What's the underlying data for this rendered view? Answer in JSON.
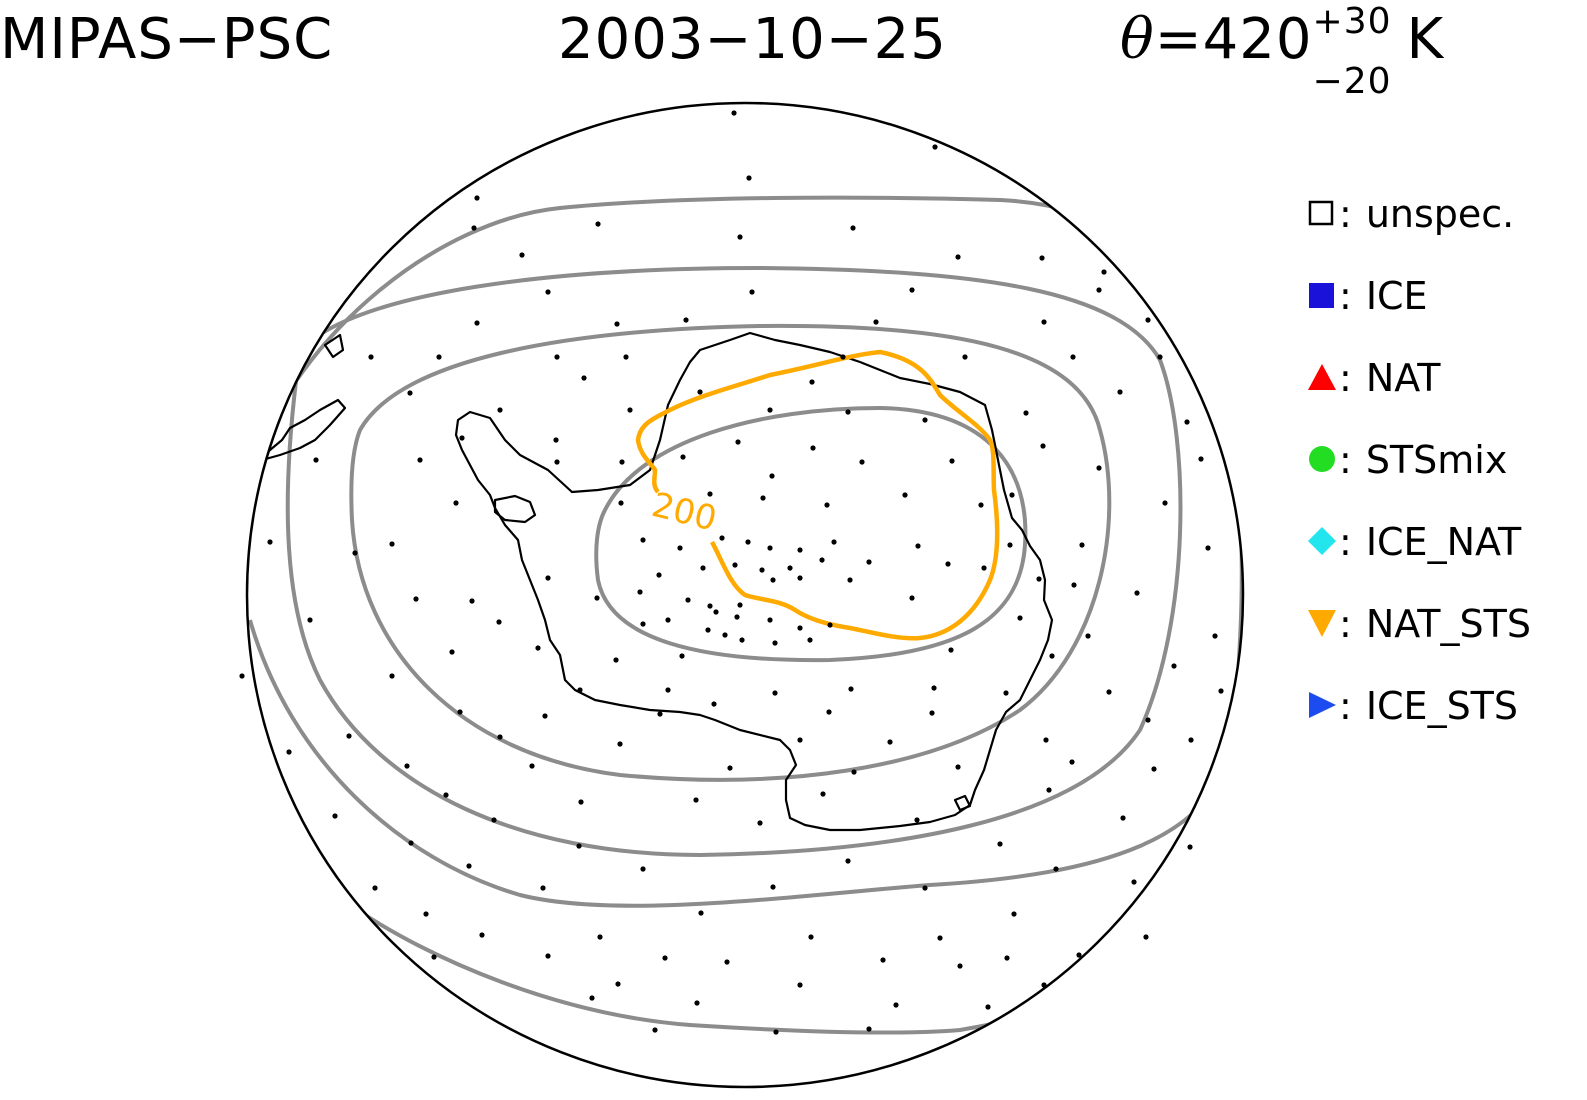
{
  "title": {
    "left": "MIPAS−PSC",
    "date": "2003−10−25",
    "theta_symbol": "θ",
    "theta_eq": "=420",
    "theta_sup": "+30",
    "theta_sub": "−20",
    "theta_unit": "K"
  },
  "contour_label": "200",
  "colors": {
    "gray_contour": "#8c8c8c",
    "orange_contour": "#ffaa00",
    "coastline": "#000000",
    "points": "#000000"
  },
  "legend": [
    {
      "label": "unspec.",
      "marker": "open-square-icon",
      "color": "#000000"
    },
    {
      "label": "ICE",
      "marker": "filled-square-icon",
      "color": "#1a12d9"
    },
    {
      "label": "NAT",
      "marker": "triangle-up-icon",
      "color": "#ff0000"
    },
    {
      "label": "STSmix",
      "marker": "circle-icon",
      "color": "#22dd22"
    },
    {
      "label": "ICE_NAT",
      "marker": "diamond-icon",
      "color": "#22e5ee"
    },
    {
      "label": "NAT_STS",
      "marker": "triangle-down-icon",
      "color": "#ffaa00"
    },
    {
      "label": "ICE_STS",
      "marker": "triangle-right-icon",
      "color": "#1c4bf0"
    }
  ],
  "colon": ":"
}
